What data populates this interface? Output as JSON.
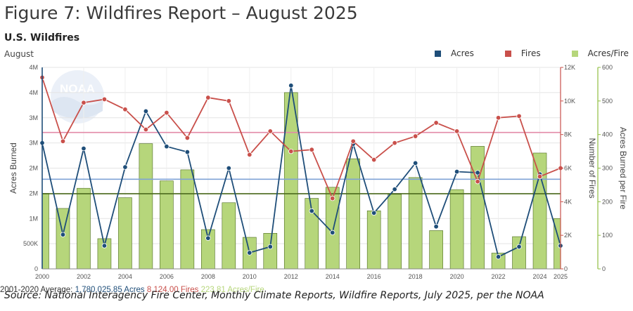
{
  "figure_title": "Figure 7: Wildfires Report – August 2025",
  "chart_data": {
    "type": "bar",
    "title": "U.S. Wildfires",
    "subtitle": "August",
    "x": [
      2000,
      2001,
      2002,
      2003,
      2004,
      2005,
      2006,
      2007,
      2008,
      2009,
      2010,
      2011,
      2012,
      2013,
      2014,
      2015,
      2016,
      2017,
      2018,
      2019,
      2020,
      2021,
      2022,
      2023,
      2024,
      2025
    ],
    "x_tick_labels": [
      "2000",
      "2002",
      "2004",
      "2006",
      "2008",
      "2010",
      "2012",
      "2014",
      "2016",
      "2018",
      "2020",
      "2022",
      "2024",
      "2025"
    ],
    "series": [
      {
        "name": "Acres",
        "type": "line",
        "axis": "left",
        "color": "#1f4e79",
        "values": [
          2500000,
          680000,
          2390000,
          460000,
          2020000,
          3130000,
          2430000,
          2320000,
          610000,
          2000000,
          320000,
          440000,
          3640000,
          1150000,
          720000,
          2480000,
          1110000,
          1580000,
          2100000,
          840000,
          1930000,
          1910000,
          240000,
          440000,
          1880000,
          460000
        ]
      },
      {
        "name": "Fires",
        "type": "line",
        "axis": "right",
        "color": "#c9504b",
        "values": [
          11400,
          7600,
          9900,
          10100,
          9500,
          8300,
          9300,
          7800,
          10200,
          10000,
          6800,
          8200,
          7000,
          7100,
          4200,
          7600,
          6500,
          7500,
          7900,
          8700,
          8200,
          5200,
          9000,
          9100,
          5500,
          6000
        ]
      },
      {
        "name": "Acres/Fire",
        "type": "bar",
        "axis": "right2",
        "color": "#b6d67b",
        "values": [
          225,
          180,
          240,
          90,
          212,
          373,
          262,
          295,
          117,
          197,
          94,
          106,
          525,
          210,
          243,
          328,
          173,
          222,
          272,
          114,
          236,
          365,
          47,
          96,
          345,
          150
        ]
      }
    ],
    "y_left": {
      "label": "Acres Burned",
      "min": 0,
      "max": 4000000,
      "ticks": [
        "0",
        "500K",
        "1M",
        "2M",
        "2M",
        "3M",
        "3M",
        "4M",
        "4M"
      ]
    },
    "y_right": {
      "label": "Number of Fires",
      "min": 0,
      "max": 12000,
      "ticks": [
        "0",
        "2K",
        "4K",
        "6K",
        "8K",
        "10K",
        "12K"
      ]
    },
    "y_right2": {
      "label": "Acres Burned per Fire",
      "min": 0,
      "max": 600,
      "ticks": [
        "0",
        "100",
        "200",
        "300",
        "400",
        "500",
        "600"
      ]
    },
    "reference_lines": [
      {
        "label": "1,780,025.85 Acres",
        "series": "Acres",
        "axis": "left",
        "value": 1780025.85,
        "color": "#7fa3d6"
      },
      {
        "label": "8,124.00 Fires",
        "series": "Fires",
        "axis": "right",
        "value": 8124,
        "color": "#e38aa8"
      },
      {
        "label": "223.81 Acres/Fire",
        "series": "Acres/Fire",
        "axis": "right2",
        "value": 223.81,
        "color": "#4b6a1d"
      }
    ],
    "average_prefix": "2001-2020 Average:",
    "legend_position": "top-right",
    "grid": true
  },
  "source": "Source: National Interagency Fire Center, Monthly Climate Reports, Wildfire Reports, July 2025, per the NOAA",
  "logo_text": "NOAA"
}
